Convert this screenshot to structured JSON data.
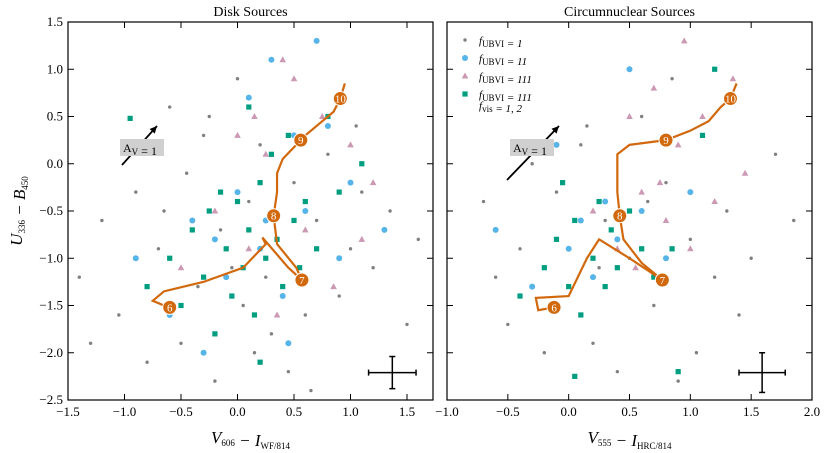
{
  "chart_data": [
    {
      "type": "scatter",
      "title": "Disk Sources",
      "xlabel": [
        {
          "text": "V",
          "sub": "606"
        },
        {
          "text": " − I",
          "sub": "WF/814"
        }
      ],
      "ylabel": [
        {
          "text": "U",
          "sub": "336"
        },
        {
          "text": " − B",
          "sub": "450"
        }
      ],
      "xlim": [
        -1.5,
        1.73
      ],
      "ylim": [
        -2.5,
        1.5
      ],
      "xticks": [
        {
          "value": -1.5,
          "label": "−1.5"
        },
        {
          "value": -1.0,
          "label": "−1.0"
        },
        {
          "value": -0.5,
          "label": "−0.5"
        },
        {
          "value": 0.0,
          "label": "0.0"
        },
        {
          "value": 0.5,
          "label": "0.5"
        },
        {
          "value": 1.0,
          "label": "1.0"
        },
        1.5
      ],
      "yticks": [
        {
          "value": -2.5,
          "label": "−2.5"
        },
        {
          "value": -2.0,
          "label": "−2.0"
        },
        {
          "value": -1.5,
          "label": "−1.5"
        },
        {
          "value": -1.0,
          "label": "−1.0"
        },
        {
          "value": -0.5,
          "label": "−0.5"
        },
        {
          "value": 0.0,
          "label": "0.0"
        },
        {
          "value": 0.5,
          "label": "0.5"
        },
        {
          "value": 1.0,
          "label": "1.0"
        },
        1.5
      ],
      "show_ytick_labels": true,
      "series": [
        {
          "marker": "dot",
          "color": "#808080",
          "x": [
            -1.4,
            -1.2,
            -1.05,
            -0.9,
            -0.8,
            -0.7,
            -0.6,
            -0.5,
            -0.45,
            -0.35,
            -0.3,
            -0.2,
            -0.15,
            -0.05,
            0.0,
            0.05,
            0.1,
            0.15,
            0.2,
            0.3,
            0.35,
            0.45,
            0.5,
            0.6,
            0.7,
            0.8,
            0.9,
            1.0,
            1.1,
            1.2,
            1.35,
            1.5,
            1.6,
            -1.3,
            -0.95,
            -0.25,
            0.25,
            0.65,
            1.05,
            -0.65
          ],
          "y": [
            -1.2,
            -0.6,
            -1.6,
            -0.3,
            -2.1,
            -0.9,
            0.6,
            -1.9,
            -0.1,
            -1.3,
            0.3,
            -2.3,
            -0.7,
            -1.1,
            0.9,
            -1.5,
            -0.4,
            -2.0,
            0.2,
            -1.8,
            -0.8,
            -2.2,
            -0.2,
            -1.6,
            -0.6,
            0.1,
            -1.4,
            -0.9,
            -0.3,
            -1.1,
            -0.5,
            -1.7,
            -0.8,
            -1.9,
            0.1,
            0.5,
            -1.2,
            -2.4,
            0.4,
            -0.5
          ]
        },
        {
          "marker": "circle",
          "color": "#56b4e9",
          "x": [
            -0.9,
            -0.6,
            -0.4,
            -0.3,
            -0.1,
            0.0,
            0.1,
            0.2,
            0.3,
            0.4,
            0.5,
            0.6,
            0.7,
            0.8,
            0.9,
            1.0,
            0.45,
            -0.2,
            0.25,
            1.3
          ],
          "y": [
            -1.0,
            -1.6,
            -0.6,
            -2.0,
            -1.2,
            -0.3,
            0.7,
            -0.9,
            1.1,
            -1.4,
            0.3,
            -0.5,
            1.3,
            0.4,
            -1.0,
            -0.2,
            -1.9,
            -0.8,
            -0.6,
            -0.7
          ]
        },
        {
          "marker": "triangle",
          "color": "#cc99b5",
          "x": [
            -0.5,
            -0.2,
            0.0,
            0.1,
            0.25,
            0.35,
            0.5,
            0.6,
            0.75,
            0.85,
            1.0,
            1.1,
            0.15,
            0.4,
            1.2
          ],
          "y": [
            -1.1,
            -0.5,
            0.3,
            -0.9,
            0.1,
            -1.6,
            0.9,
            -0.7,
            0.5,
            -1.3,
            0.2,
            -0.8,
            0.5,
            1.1,
            -0.2
          ]
        },
        {
          "marker": "square",
          "color": "#009e80",
          "x": [
            -0.8,
            -0.6,
            -0.5,
            -0.4,
            -0.3,
            -0.25,
            -0.2,
            -0.1,
            -0.05,
            0.0,
            0.05,
            0.1,
            0.15,
            0.2,
            0.25,
            0.3,
            0.35,
            0.4,
            0.45,
            0.5,
            0.55,
            0.6,
            0.7,
            0.8,
            0.9,
            0.2,
            -0.15,
            0.1,
            -0.95,
            1.1
          ],
          "y": [
            -1.3,
            -1.0,
            -1.5,
            -0.7,
            -1.2,
            -0.5,
            -1.8,
            -0.9,
            -1.4,
            -0.4,
            -1.1,
            -0.7,
            -1.6,
            -0.2,
            -1.0,
            0.1,
            -0.8,
            -1.3,
            0.3,
            -0.6,
            -1.1,
            -0.4,
            -0.9,
            0.5,
            -0.3,
            -2.1,
            -0.3,
            0.6,
            0.48,
            0.0
          ]
        }
      ],
      "track": {
        "color": "#d2680c",
        "x": [
          -0.55,
          -0.75,
          -0.65,
          -0.3,
          0.05,
          0.25,
          0.22,
          0.45,
          0.57,
          0.52,
          0.35,
          0.32,
          0.35,
          0.35,
          0.4,
          0.6,
          0.7,
          0.85,
          0.91,
          0.95
        ],
        "y": [
          -1.55,
          -1.45,
          -1.35,
          -1.25,
          -1.1,
          -0.85,
          -0.78,
          -1.1,
          -1.23,
          -1.1,
          -0.85,
          -0.55,
          -0.3,
          -0.1,
          0.05,
          0.3,
          0.4,
          0.55,
          0.69,
          0.85
        ],
        "labels": [
          "6",
          "7",
          "8",
          "9",
          "10"
        ],
        "label_x": [
          -0.6,
          0.57,
          0.32,
          0.56,
          0.91
        ],
        "label_y": [
          -1.52,
          -1.23,
          -0.55,
          0.25,
          0.69
        ]
      },
      "annotation": [
        {
          "text": "A",
          "sub": "V"
        },
        {
          "text": " = 1"
        }
      ],
      "error_bar": {
        "x": 1.37,
        "y": -2.21,
        "xerr": 0.21,
        "yerr": 0.17
      }
    },
    {
      "type": "scatter",
      "title": "Circumnuclear Sources",
      "xlabel": [
        {
          "text": "V",
          "sub": "555"
        },
        {
          "text": " − I",
          "sub": "HRC/814"
        }
      ],
      "xlim": [
        -1.0,
        2.0
      ],
      "ylim": [
        -2.5,
        1.5
      ],
      "xticks": [
        {
          "value": -1.0,
          "label": "−1.0"
        },
        {
          "value": -0.5,
          "label": "−0.5"
        },
        {
          "value": 0.0,
          "label": "0.0"
        },
        0.5,
        {
          "value": 1.0,
          "label": "1.0"
        },
        1.5,
        {
          "value": 2.0,
          "label": "2.0"
        }
      ],
      "yticks": [
        -2.5,
        -2.0,
        -1.5,
        -1.0,
        -0.5,
        0.0,
        0.5,
        1.0,
        1.5
      ],
      "show_ytick_labels": false,
      "legend": "upper left",
      "series": [
        {
          "marker": "dot",
          "color": "#808080",
          "legend_label": [
            [
              {
                "text": "f",
                "sub": "UBVI"
              },
              {
                "text": " = 1"
              }
            ]
          ],
          "x": [
            -0.7,
            -0.5,
            -0.4,
            -0.2,
            -0.1,
            0.0,
            0.1,
            0.2,
            0.3,
            0.4,
            0.5,
            0.6,
            0.7,
            0.8,
            0.9,
            1.0,
            1.1,
            1.2,
            1.3,
            1.5,
            1.7,
            1.85,
            -0.3,
            0.25,
            0.65,
            1.05,
            1.4,
            -0.6,
            0.85,
            0.15
          ],
          "y": [
            -0.4,
            -1.7,
            -0.9,
            -2.0,
            -0.3,
            -1.3,
            0.2,
            -1.9,
            -0.6,
            -2.2,
            -1.0,
            0.5,
            -1.5,
            -0.2,
            -2.3,
            -0.8,
            0.3,
            -1.2,
            -0.5,
            -1.0,
            0.1,
            -0.6,
            0.0,
            -1.1,
            -0.4,
            -2.0,
            -1.6,
            -1.2,
            0.9,
            0.4
          ]
        },
        {
          "marker": "circle",
          "color": "#56b4e9",
          "legend_label": [
            [
              {
                "text": "f",
                "sub": "UBVI"
              },
              {
                "text": " = 11"
              }
            ]
          ],
          "x": [
            -0.6,
            -0.3,
            0.0,
            0.1,
            0.2,
            0.4,
            0.6,
            0.8,
            1.0,
            0.3,
            -0.1,
            0.5
          ],
          "y": [
            -0.7,
            -1.3,
            -0.9,
            -0.6,
            -1.2,
            -0.8,
            -0.5,
            -1.0,
            -0.3,
            -0.4,
            0.2,
            1.0
          ]
        },
        {
          "marker": "triangle",
          "color": "#cc99b5",
          "legend_label": [
            [
              {
                "text": "f",
                "sub": "UBVI"
              },
              {
                "text": " = 111"
              }
            ]
          ],
          "x": [
            0.2,
            0.4,
            0.5,
            0.6,
            0.7,
            0.8,
            0.9,
            1.0,
            1.1,
            1.2,
            1.35,
            1.45,
            0.55,
            0.75,
            0.95
          ],
          "y": [
            -0.5,
            -0.9,
            0.5,
            -0.3,
            0.8,
            -0.6,
            0.2,
            -0.9,
            0.5,
            -0.4,
            0.9,
            -0.1,
            -1.1,
            -0.2,
            1.3
          ]
        },
        {
          "marker": "square",
          "color": "#009e80",
          "legend_label": [
            [
              {
                "text": "f",
                "sub": "UBVI"
              },
              {
                "text": " = 111"
              }
            ],
            [
              {
                "text": "f",
                "sub": "vis"
              },
              {
                "text": " = 1, 2"
              }
            ]
          ],
          "x": [
            -0.4,
            -0.2,
            -0.1,
            0.0,
            0.05,
            0.1,
            0.2,
            0.25,
            0.3,
            0.35,
            0.4,
            0.5,
            0.6,
            0.7,
            0.9,
            1.1,
            0.05,
            0.85,
            -0.05,
            1.2
          ],
          "y": [
            -1.4,
            -1.1,
            -0.8,
            -1.3,
            -0.6,
            -1.6,
            -1.0,
            -0.4,
            -1.3,
            -0.7,
            -1.1,
            -0.5,
            -0.9,
            -1.2,
            -2.2,
            0.3,
            -2.25,
            -0.9,
            -0.2,
            1.0
          ]
        }
      ],
      "track": {
        "color": "#d2680c",
        "x": [
          -0.12,
          -0.25,
          -0.27,
          0.0,
          0.15,
          0.25,
          0.5,
          0.77,
          0.6,
          0.45,
          0.42,
          0.4,
          0.4,
          0.5,
          0.8,
          1.0,
          1.15,
          1.25,
          1.33,
          1.38
        ],
        "y": [
          -1.52,
          -1.55,
          -1.42,
          -1.4,
          -1.0,
          -0.8,
          -1.0,
          -1.23,
          -1.05,
          -0.8,
          -0.55,
          -0.3,
          0.1,
          0.2,
          0.25,
          0.35,
          0.45,
          0.6,
          0.69,
          0.85
        ],
        "labels": [
          "6",
          "7",
          "8",
          "9",
          "10"
        ],
        "label_x": [
          -0.12,
          0.77,
          0.42,
          0.8,
          1.33
        ],
        "label_y": [
          -1.52,
          -1.23,
          -0.55,
          0.25,
          0.69
        ]
      },
      "annotation": [
        {
          "text": "A",
          "sub": "V"
        },
        {
          "text": " = 1"
        }
      ],
      "error_bar": {
        "x": 1.59,
        "y": -2.21,
        "xerr": 0.19,
        "yerr": 0.21
      }
    }
  ]
}
